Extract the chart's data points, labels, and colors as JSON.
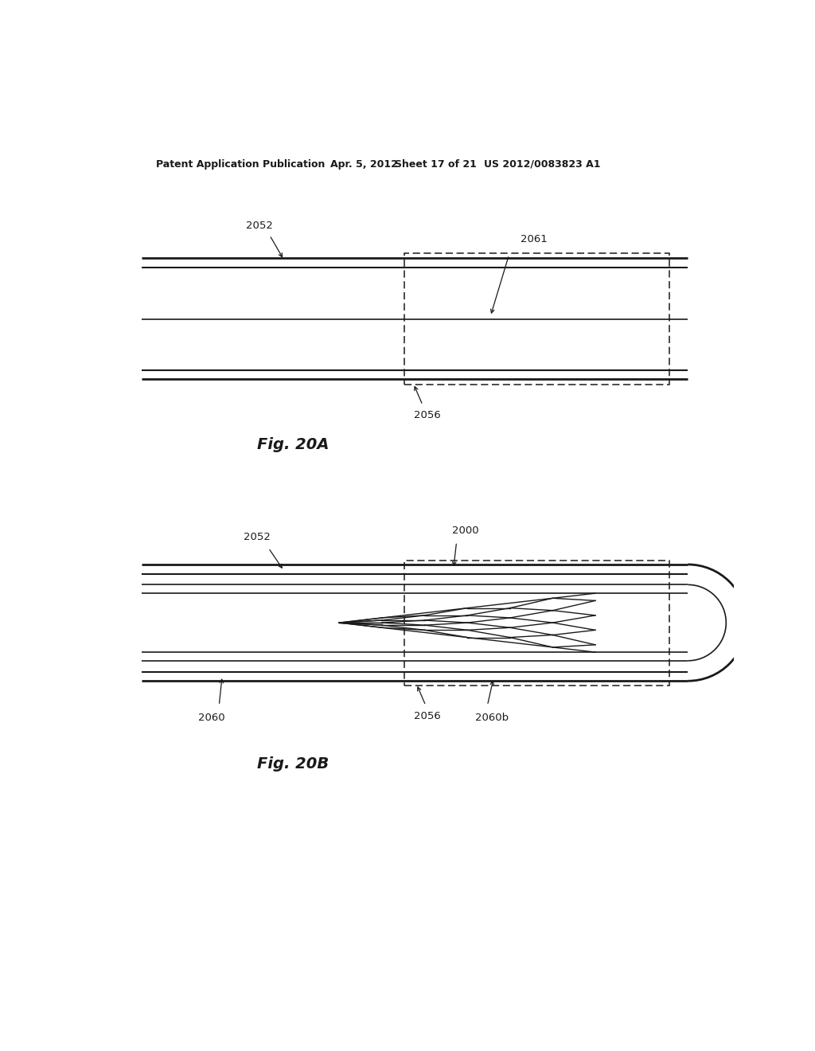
{
  "bg_color": "#ffffff",
  "header_line1": "Patent Application Publication",
  "header_line2": "Apr. 5, 2012",
  "header_line3": "Sheet 17 of 21",
  "header_line4": "US 2012/0083823 A1",
  "fig20a_caption": "Fig. 20A",
  "fig20b_caption": "Fig. 20B",
  "label_2052a": "2052",
  "label_2061": "2061",
  "label_2056a": "2056",
  "label_2052b": "2052",
  "label_2000": "2000",
  "label_2056b": "2056",
  "label_2060": "2060",
  "label_2060b": "2060b",
  "color_line": "#1a1a1a"
}
